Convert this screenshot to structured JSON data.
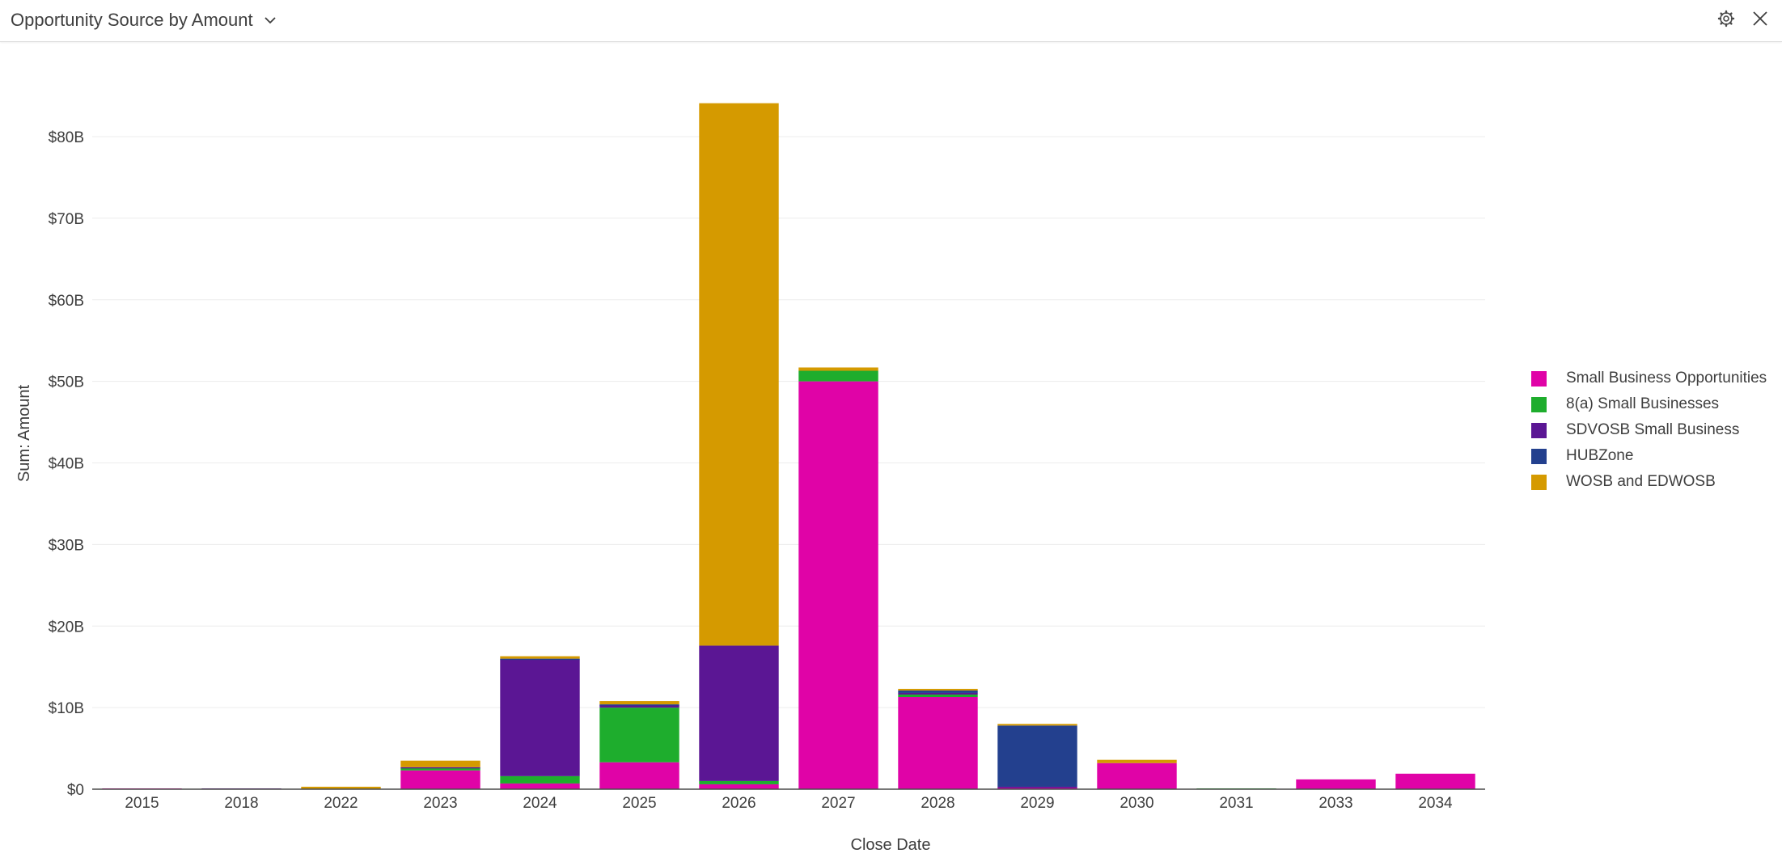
{
  "header": {
    "title": "Opportunity Source by Amount",
    "icons": {
      "dropdown": "chevron-down-icon",
      "settings": "gear-icon",
      "close": "close-icon"
    }
  },
  "chart_data": {
    "type": "bar",
    "stacked": true,
    "xlabel": "Close Date",
    "ylabel": "Sum: Amount",
    "ylim": [
      0,
      85
    ],
    "yticks": [
      0,
      10,
      20,
      30,
      40,
      50,
      60,
      70,
      80
    ],
    "ytick_labels": [
      "$0",
      "$10B",
      "$20B",
      "$30B",
      "$40B",
      "$50B",
      "$60B",
      "$70B",
      "$80B"
    ],
    "y_unit": "$B",
    "grid": true,
    "legend_position": "right",
    "categories": [
      "2015",
      "2018",
      "2022",
      "2023",
      "2024",
      "2025",
      "2026",
      "2027",
      "2028",
      "2029",
      "2030",
      "2031",
      "2033",
      "2034"
    ],
    "series": [
      {
        "name": "Small Business Opportunities",
        "color": "#e003a7",
        "values": [
          0.1,
          0.0,
          0.0,
          2.3,
          0.7,
          3.3,
          0.6,
          50.0,
          11.3,
          0.2,
          3.2,
          0.0,
          1.2,
          1.9
        ]
      },
      {
        "name": "8(a) Small Businesses",
        "color": "#1ead2d",
        "values": [
          0.0,
          0.0,
          0.0,
          0.3,
          0.9,
          6.7,
          0.4,
          1.3,
          0.3,
          0.0,
          0.0,
          0.1,
          0.0,
          0.0
        ]
      },
      {
        "name": "SDVOSB Small Business",
        "color": "#5b1694",
        "values": [
          0.0,
          0.1,
          0.0,
          0.1,
          14.3,
          0.3,
          16.6,
          0.0,
          0.2,
          0.1,
          0.0,
          0.0,
          0.0,
          0.0
        ]
      },
      {
        "name": "HUBZone",
        "color": "#23408e",
        "values": [
          0.0,
          0.0,
          0.0,
          0.0,
          0.1,
          0.1,
          0.0,
          0.0,
          0.3,
          7.5,
          0.0,
          0.0,
          0.0,
          0.0
        ]
      },
      {
        "name": "WOSB and EDWOSB",
        "color": "#d59a00",
        "values": [
          0.0,
          0.0,
          0.3,
          0.8,
          0.3,
          0.4,
          66.5,
          0.4,
          0.2,
          0.2,
          0.4,
          0.0,
          0.0,
          0.0
        ]
      }
    ]
  }
}
